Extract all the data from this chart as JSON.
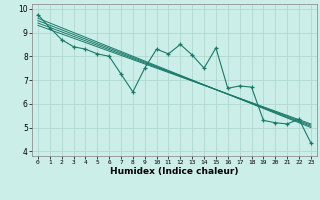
{
  "title": "",
  "xlabel": "Humidex (Indice chaleur)",
  "ylabel": "",
  "bg_color": "#cceee8",
  "grid_color": "#aad4cc",
  "line_color": "#1a7a6a",
  "xlim": [
    -0.5,
    23.5
  ],
  "ylim": [
    3.8,
    10.2
  ],
  "xticks": [
    0,
    1,
    2,
    3,
    4,
    5,
    6,
    7,
    8,
    9,
    10,
    11,
    12,
    13,
    14,
    15,
    16,
    17,
    18,
    19,
    20,
    21,
    22,
    23
  ],
  "yticks": [
    4,
    5,
    6,
    7,
    8,
    9,
    10
  ],
  "data_line": {
    "x": [
      0,
      1,
      2,
      3,
      4,
      5,
      6,
      7,
      8,
      9,
      10,
      11,
      12,
      13,
      14,
      15,
      16,
      17,
      18,
      19,
      20,
      21,
      22,
      23
    ],
    "y": [
      9.75,
      9.2,
      8.7,
      8.4,
      8.3,
      8.1,
      8.0,
      7.25,
      6.5,
      7.5,
      8.3,
      8.1,
      8.5,
      8.05,
      7.5,
      8.35,
      6.65,
      6.75,
      6.7,
      5.3,
      5.2,
      5.15,
      5.35,
      4.35
    ]
  },
  "reg_lines": [
    {
      "x": [
        0,
        23
      ],
      "y": [
        9.6,
        5.0
      ]
    },
    {
      "x": [
        0,
        23
      ],
      "y": [
        9.5,
        5.05
      ]
    },
    {
      "x": [
        0,
        23
      ],
      "y": [
        9.4,
        5.1
      ]
    },
    {
      "x": [
        0,
        23
      ],
      "y": [
        9.3,
        5.15
      ]
    }
  ]
}
